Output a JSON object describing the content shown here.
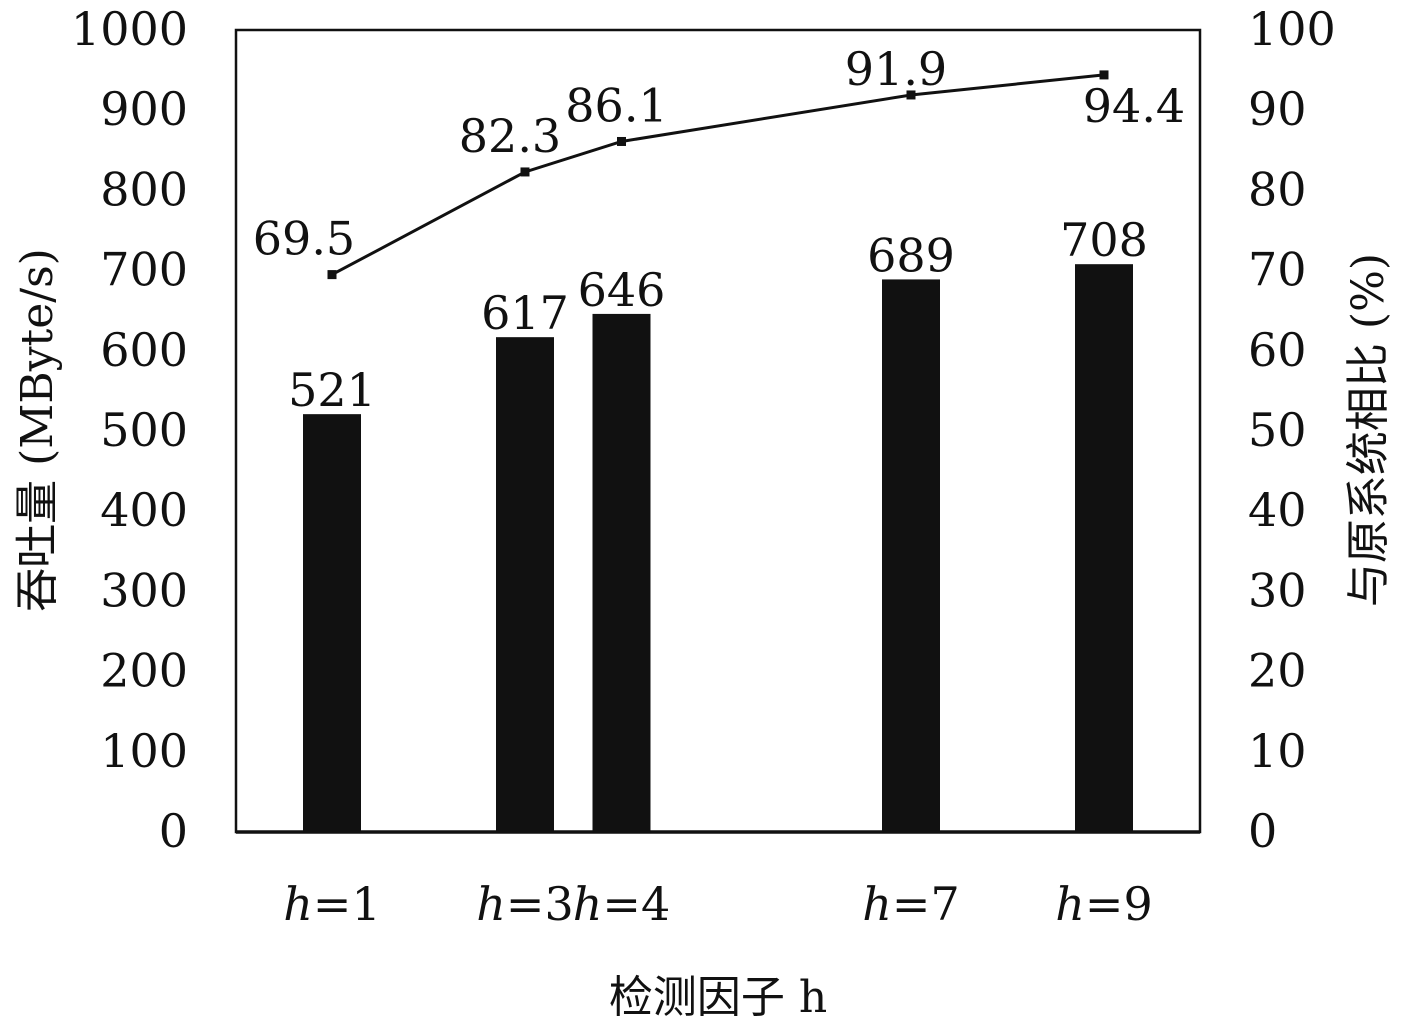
{
  "chart_data": {
    "type": "bar",
    "categories": [
      "h=1",
      "h=3",
      "h=4",
      "h=7",
      "h=9"
    ],
    "category_positions": [
      1,
      3,
      4,
      7,
      9
    ],
    "series": [
      {
        "name": "",
        "kind": "bar",
        "axis": "left",
        "values": [
          521,
          617,
          646,
          689,
          708
        ]
      },
      {
        "name": "",
        "kind": "line",
        "axis": "right",
        "values": [
          69.5,
          82.3,
          86.1,
          91.9,
          94.4
        ]
      }
    ],
    "xlabel": "检测因子 h",
    "ylabel": "吞吐量 (MByte/s)",
    "y2label": "与原系统相比 (%)",
    "ylim": [
      0,
      1000
    ],
    "y2lim": [
      0,
      100
    ],
    "yticks": [
      0,
      100,
      200,
      300,
      400,
      500,
      600,
      700,
      800,
      900,
      1000
    ],
    "y2ticks": [
      0,
      10,
      20,
      30,
      40,
      50,
      60,
      70,
      80,
      90,
      100
    ],
    "grid": false,
    "legend": "none",
    "colors": {
      "bar": "#111111",
      "line": "#111111"
    }
  }
}
